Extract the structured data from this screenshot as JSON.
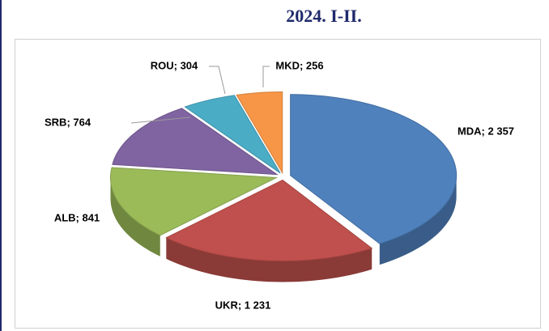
{
  "chart_data": {
    "type": "pie",
    "title": "2024. I-II.",
    "values": [
      2357,
      1231,
      841,
      764,
      304,
      256
    ],
    "value_labels": [
      "MDA; 2 357",
      "UKR; 1 231",
      "ALB; 841",
      "SRB; 764",
      "ROU; 304",
      "MKD; 256"
    ],
    "colors": [
      "#4f81bd",
      "#c0504d",
      "#9bbb59",
      "#8064a2",
      "#4bacc6",
      "#f79646"
    ]
  }
}
